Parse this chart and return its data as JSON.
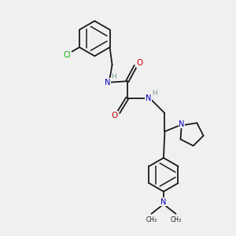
{
  "bg_color": "#f0f0f0",
  "bond_color": "#1a1a1a",
  "N_color": "#0000bb",
  "O_color": "#cc0000",
  "Cl_color": "#00aa00",
  "figsize": [
    3.0,
    3.0
  ],
  "dpi": 100,
  "xlim": [
    0,
    10
  ],
  "ylim": [
    0,
    10
  ]
}
